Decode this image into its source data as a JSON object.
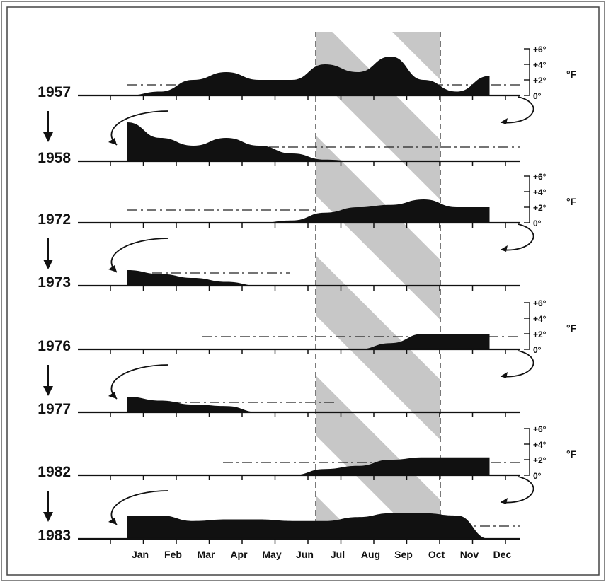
{
  "chart_data": {
    "type": "area",
    "x": [
      "Jan",
      "Feb",
      "Mar",
      "Apr",
      "May",
      "Jun",
      "Jul",
      "Aug",
      "Sep",
      "Oct",
      "Nov",
      "Dec"
    ],
    "scale_labels": [
      "+6°",
      "+4°",
      "+2°",
      "0°"
    ],
    "scale_unit": "°F",
    "shaded_period": [
      "Jul",
      "Oct"
    ],
    "colors": {
      "fill": "#111111",
      "shade": "#b4b4b4",
      "frame": "#555555"
    },
    "panels": [
      {
        "years": [
          "1957",
          "1958"
        ],
        "series": [
          {
            "name": "1957",
            "values": [
              0,
              0,
              0,
              0,
              0,
              0,
              0,
              0,
              0,
              0,
              0,
              0
            ]
          }
        ]
      }
    ],
    "series": [
      {
        "name": "1957",
        "values": [
          0,
          0.5,
          2,
          3,
          2,
          2,
          4,
          3,
          5,
          2,
          0.5,
          2.5
        ]
      },
      {
        "name": "1958",
        "values": [
          5,
          3,
          2,
          3,
          2,
          1,
          0.2,
          0,
          0,
          0,
          0,
          0
        ]
      },
      {
        "name": "1972",
        "values": [
          0,
          0,
          0,
          0,
          0,
          0.3,
          1.3,
          2,
          2.3,
          3,
          2,
          2
        ]
      },
      {
        "name": "1973",
        "values": [
          2,
          1.5,
          1,
          0.5,
          0,
          0,
          0,
          0,
          0,
          0,
          0,
          0
        ]
      },
      {
        "name": "1976",
        "values": [
          0,
          0,
          0,
          0,
          0,
          0,
          0,
          0,
          0.8,
          2,
          2,
          2
        ]
      },
      {
        "name": "1977",
        "values": [
          2,
          1.5,
          1,
          0.8,
          0,
          0,
          0,
          0,
          0,
          0,
          0,
          0
        ]
      },
      {
        "name": "1982",
        "values": [
          0,
          0,
          0,
          0,
          0,
          0,
          0.8,
          1.2,
          2,
          2.3,
          2.3,
          2.3
        ]
      },
      {
        "name": "1983",
        "values": [
          3,
          3,
          2.3,
          2.5,
          2.5,
          2.3,
          2.3,
          2.8,
          3.3,
          3.3,
          3,
          0
        ]
      }
    ]
  }
}
